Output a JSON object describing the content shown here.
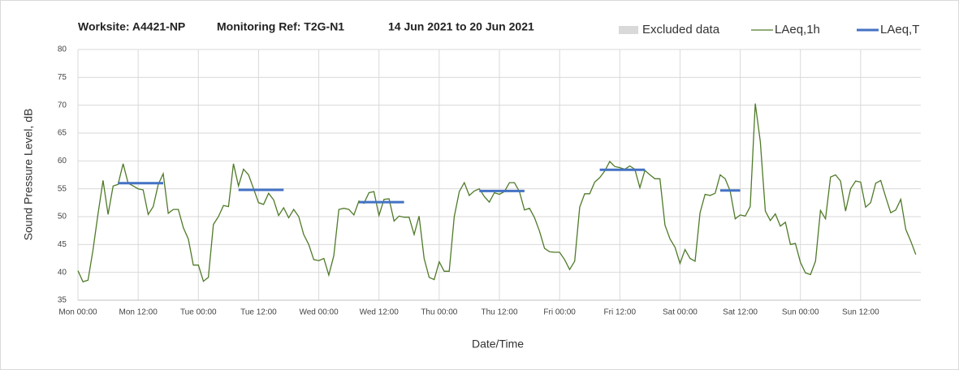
{
  "chart_data": {
    "type": "line",
    "title": {
      "worksite": "Worksite: A4421-NP",
      "monitoring_ref": "Monitoring Ref: T2G-N1",
      "period": "14 Jun 2021 to 20 Jun 2021"
    },
    "xlabel": "Date/Time",
    "ylabel": "Sound Pressure Level, dB",
    "x": [
      0,
      1,
      2,
      3,
      4,
      5,
      6,
      7,
      8,
      9,
      10,
      11,
      12,
      13,
      14,
      15,
      16,
      17,
      18,
      19,
      20,
      21,
      22,
      23,
      24,
      25,
      26,
      27,
      28,
      29,
      30,
      31,
      32,
      33,
      34,
      35,
      36,
      37,
      38,
      39,
      40,
      41,
      42,
      43,
      44,
      45,
      46,
      47,
      48,
      49,
      50,
      51,
      52,
      53,
      54,
      55,
      56,
      57,
      58,
      59,
      60,
      61,
      62,
      63,
      64,
      65,
      66,
      67,
      68,
      69,
      70,
      71,
      72,
      73,
      74,
      75,
      76,
      77,
      78,
      79,
      80,
      81,
      82,
      83,
      84,
      85,
      86,
      87,
      88,
      89,
      90,
      91,
      92,
      93,
      94,
      95,
      96,
      97,
      98,
      99,
      100,
      101,
      102,
      103,
      104,
      105,
      106,
      107,
      108,
      109,
      110,
      111,
      112,
      113,
      114,
      115,
      116,
      117,
      118,
      119,
      120,
      121,
      122,
      123,
      124,
      125,
      126,
      127,
      128,
      129,
      130,
      131,
      132,
      133,
      134,
      135,
      136,
      137,
      138,
      139,
      140,
      141,
      142,
      143,
      144,
      145,
      146,
      147,
      148,
      149,
      150,
      151,
      152,
      153,
      154,
      155,
      156,
      157,
      158,
      159,
      160,
      161,
      162,
      163,
      164,
      165,
      166,
      167
    ],
    "series": [
      {
        "name": "Excluded data",
        "color": "#d9d9d9",
        "x": [],
        "values": []
      },
      {
        "name": "LAeq,1h",
        "color": "#4f7a28",
        "values": [
          40.3,
          38.3,
          38.6,
          44,
          50.5,
          56.5,
          50.4,
          55.5,
          55.8,
          59.5,
          56,
          55.5,
          55,
          54.8,
          50.4,
          51.8,
          55.8,
          57.7,
          50.6,
          51.3,
          51.3,
          48,
          46,
          41.3,
          41.3,
          38.4,
          39.1,
          48.6,
          50,
          52,
          51.8,
          59.5,
          55.5,
          58.5,
          57.5,
          55,
          52.5,
          52.2,
          54.2,
          53,
          50.2,
          51.6,
          49.8,
          51.3,
          50,
          46.8,
          45,
          42.3,
          42.1,
          42.5,
          39.5,
          43,
          51.3,
          51.5,
          51.3,
          50.3,
          52.8,
          52.4,
          54.3,
          54.5,
          50.2,
          53.1,
          53.2,
          49.2,
          50.1,
          49.9,
          49.9,
          46.8,
          50.1,
          42.5,
          39.1,
          38.7,
          41.9,
          40.2,
          40.2,
          50,
          54.5,
          56.1,
          53.8,
          54.6,
          55,
          53.6,
          52.6,
          54.3,
          54,
          54.5,
          56.1,
          56.1,
          54.5,
          51.2,
          51.5,
          49.8,
          47.4,
          44.3,
          43.7,
          43.6,
          43.6,
          42.3,
          40.5,
          42,
          51.7,
          54.1,
          54.1,
          56.2,
          57,
          58.2,
          59.9,
          59,
          58.8,
          58.5,
          59.1,
          58.5,
          55.2,
          58.3,
          57.5,
          56.8,
          56.8,
          48.5,
          46,
          44.5,
          41.6,
          44.1,
          42.5,
          42,
          50.7,
          54,
          53.8,
          54.2,
          57.5,
          56.8,
          54.6,
          49.6,
          50.3,
          50.1,
          51.8,
          70.3,
          63.5,
          51,
          49.3,
          50.5,
          48.3,
          49,
          45,
          45.2,
          41.8,
          39.9,
          39.6,
          42,
          51.1,
          49.6,
          57.1,
          57.5,
          56.4,
          51,
          55,
          56.4,
          56.2,
          51.7,
          52.5,
          56,
          56.5,
          53.5,
          50.7,
          51.2,
          53.1,
          47.7,
          45.6,
          43.2
        ]
      },
      {
        "name": "LAeq,T",
        "color": "#4472c4",
        "x": [
          8,
          17,
          24,
          32,
          41,
          48,
          56,
          65,
          72,
          80,
          89,
          96,
          104,
          113,
          120,
          128,
          132
        ],
        "values": [
          56,
          56,
          null,
          54.8,
          54.8,
          null,
          52.6,
          52.6,
          null,
          54.6,
          54.6,
          null,
          58.4,
          58.4,
          null,
          54.7,
          54.7
        ]
      }
    ],
    "xlim": [
      0,
      168
    ],
    "xticks": [
      {
        "value": 0,
        "label": "Mon 00:00"
      },
      {
        "value": 12,
        "label": "Mon 12:00"
      },
      {
        "value": 24,
        "label": "Tue 00:00"
      },
      {
        "value": 36,
        "label": "Tue 12:00"
      },
      {
        "value": 48,
        "label": "Wed 00:00"
      },
      {
        "value": 60,
        "label": "Wed 12:00"
      },
      {
        "value": 72,
        "label": "Thu 00:00"
      },
      {
        "value": 84,
        "label": "Thu 12:00"
      },
      {
        "value": 96,
        "label": "Fri 00:00"
      },
      {
        "value": 108,
        "label": "Fri 12:00"
      },
      {
        "value": 120,
        "label": "Sat 00:00"
      },
      {
        "value": 132,
        "label": "Sat 12:00"
      },
      {
        "value": 144,
        "label": "Sun 00:00"
      },
      {
        "value": 156,
        "label": "Sun 12:00"
      }
    ],
    "ylim": [
      35,
      80
    ],
    "yticks": [
      35,
      40,
      45,
      50,
      55,
      60,
      65,
      70,
      75,
      80
    ],
    "grid": true
  }
}
